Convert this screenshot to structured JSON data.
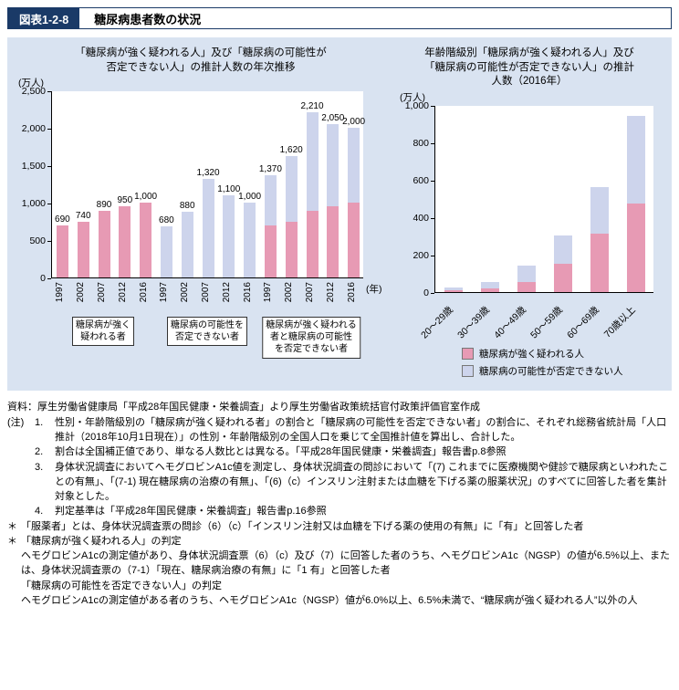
{
  "header": {
    "figure_label": "図表1-2-8",
    "title": "糖尿病患者数の状況"
  },
  "colors": {
    "header_navy": "#1a3a67",
    "panel_bg": "#d9e3f1",
    "pink": "#e79ab4",
    "lavender": "#cdd4ec",
    "axis": "#000000"
  },
  "chart_data": [
    {
      "type": "bar",
      "title": "「糖尿病が強く疑われる人」及び「糖尿病の可能性が否定できない人」の推計人数の年次推移",
      "title_lines": [
        "「糖尿病が強く疑われる人」及び「糖尿病の可能性が",
        "否定できない人」の推計人数の年次推移"
      ],
      "ylabel": "(万人)",
      "xlabel": "(年)",
      "ylim": [
        0,
        2500
      ],
      "yticks": [
        0,
        500,
        1000,
        1500,
        2000,
        2500
      ],
      "ytick_labels": [
        "0",
        "500",
        "1,000",
        "1,500",
        "2,000",
        "2,500"
      ],
      "years": [
        "1997",
        "2002",
        "2007",
        "2012",
        "2016"
      ],
      "grid": false,
      "groups": [
        {
          "label": "糖尿病が強く疑われる者",
          "label_lines": [
            "糖尿病が強く",
            "疑われる者"
          ],
          "style": "pink",
          "values": [
            690,
            740,
            890,
            950,
            1000
          ],
          "value_labels": [
            "690",
            "740",
            "890",
            "950",
            "1,000"
          ]
        },
        {
          "label": "糖尿病の可能性を否定できない者",
          "label_lines": [
            "糖尿病の可能性を",
            "否定できない者"
          ],
          "style": "lavender",
          "values": [
            680,
            880,
            1320,
            1100,
            1000
          ],
          "value_labels": [
            "680",
            "880",
            "1,320",
            "1,100",
            "1,000"
          ]
        },
        {
          "label": "糖尿病が強く疑われる者と糖尿病の可能性を否定できない者",
          "label_lines": [
            "糖尿病が強く疑われる",
            "者と糖尿病の可能性",
            "を否定できない者"
          ],
          "style": "stacked",
          "pink_values": [
            690,
            740,
            890,
            950,
            1000
          ],
          "lavender_values": [
            680,
            880,
            1320,
            1100,
            1000
          ],
          "totals": [
            1370,
            1620,
            2210,
            2050,
            2000
          ],
          "value_labels": [
            "1,370",
            "1,620",
            "2,210",
            "2,050",
            "2,000"
          ]
        }
      ]
    },
    {
      "type": "bar",
      "subtype": "stacked",
      "title": "年齢階級別「糖尿病が強く疑われる人」及び「糖尿病の可能性が否定できない人」の推計人数（2016年）",
      "title_lines": [
        "年齢階級別「糖尿病が強く疑われる人」及び",
        "「糖尿病の可能性が否定できない人」の推計",
        "人数（2016年）"
      ],
      "ylabel": "(万人)",
      "ylim": [
        0,
        1000
      ],
      "yticks": [
        0,
        200,
        400,
        600,
        800,
        1000
      ],
      "ytick_labels": [
        "0",
        "200",
        "400",
        "600",
        "800",
        "1,000"
      ],
      "categories": [
        "20～29歳",
        "30～39歳",
        "40～49歳",
        "50～59歳",
        "60～69歳",
        "70歳以上"
      ],
      "grid": false,
      "legend_position": "bottom",
      "series": [
        {
          "name": "糖尿病が強く疑われる人",
          "style": "pink",
          "values": [
            6,
            15,
            50,
            150,
            310,
            470
          ]
        },
        {
          "name": "糖尿病の可能性が否定できない人",
          "style": "lavender",
          "values": [
            16,
            35,
            90,
            150,
            250,
            470
          ]
        }
      ]
    }
  ],
  "notes": {
    "source": "資料：厚生労働省健康局「平成28年国民健康・栄養調査」より厚生労働省政策統括官付政策評価官室作成",
    "label": "(注)",
    "numbered": [
      {
        "num": "1.",
        "text": "性別・年齢階級別の「糖尿病が強く疑われる者」の割合と「糖尿病の可能性を否定できない者」の割合に、それぞれ総務省統計局「人口推計（2018年10月1日現在）」の性別・年齢階級別の全国人口を乗じて全国推計値を算出し、合計した。"
      },
      {
        "num": "2.",
        "text": "割合は全国補正値であり、単なる人数比とは異なる。「平成28年国民健康・栄養調査」報告書p.8参照"
      },
      {
        "num": "3.",
        "text": "身体状況調査においてヘモグロビンA1c値を測定し、身体状況調査の問診において「(7) これまでに医療機関や健診で糖尿病といわれたことの有無」、「(7-1) 現在糖尿病の治療の有無」、「(6)（c）インスリン注射または血糖を下げる薬の服薬状況」のすべてに回答した者を集計対象とした。"
      },
      {
        "num": "4.",
        "text": "判定基準は「平成28年国民健康・栄養調査」報告書p.16参照"
      }
    ],
    "starred": [
      {
        "marker": "＊",
        "lines": [
          "「服薬者」とは、身体状況調査票の問診（6）（c）「インスリン注射又は血糖を下げる薬の使用の有無」に「有」と回答した者"
        ]
      },
      {
        "marker": "＊",
        "lines": [
          "「糖尿病が強く疑われる人」の判定",
          "ヘモグロビンA1cの測定値があり、身体状況調査票（6）（c）及び（7）に回答した者のうち、ヘモグロビンA1c（NGSP）の値が6.5%以上、または、身体状況調査票の（7-1）「現在、糖尿病治療の有無」に「1 有」と回答した者",
          "「糖尿病の可能性を否定できない人」の判定",
          "ヘモグロビンA1cの測定値がある者のうち、ヘモグロビンA1c（NGSP）値が6.0%以上、6.5%未満で、“糖尿病が強く疑われる人”以外の人"
        ]
      }
    ]
  }
}
